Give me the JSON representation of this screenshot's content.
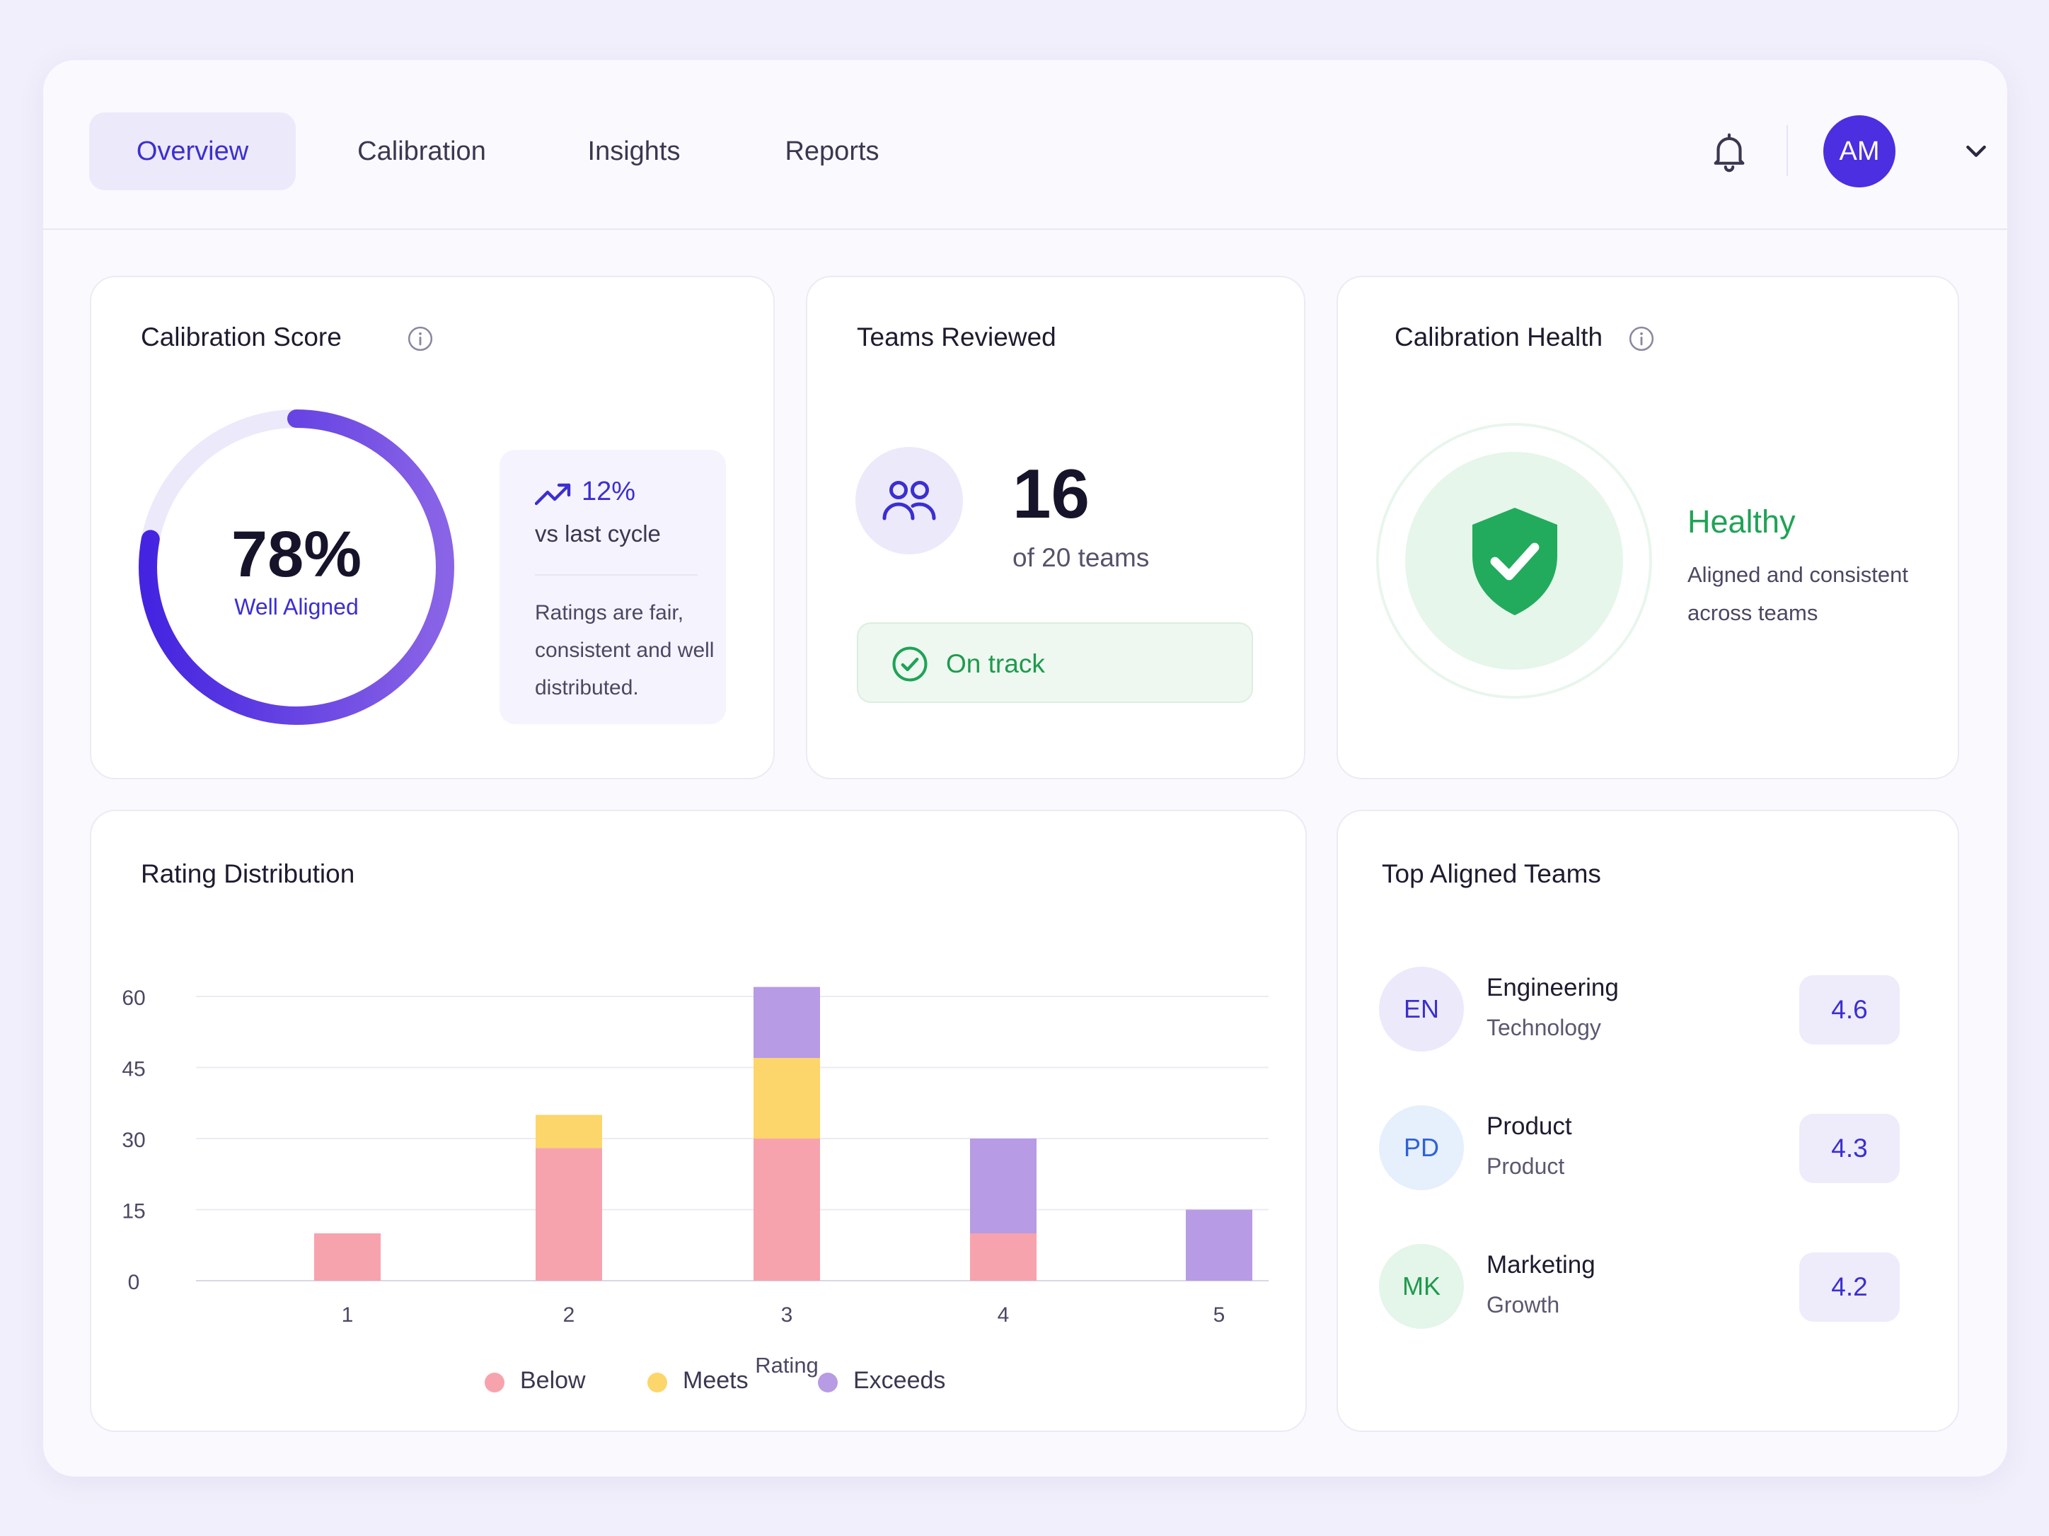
{
  "nav": {
    "tabs": [
      {
        "label": "Overview",
        "active": true
      },
      {
        "label": "Calibration",
        "active": false
      },
      {
        "label": "Insights",
        "active": false
      },
      {
        "label": "Reports",
        "active": false
      }
    ],
    "user_initials": "AM",
    "icons": {
      "notifications": "bell-icon",
      "menu": "chevron-down-icon"
    }
  },
  "calibration_score": {
    "title": "Calibration Score",
    "value": "78%",
    "value_fraction": 0.78,
    "status": "Well Aligned",
    "trend": {
      "pct": "12%",
      "label": "vs last cycle",
      "note": "Ratings are fair, consistent and well distributed."
    }
  },
  "teams_reviewed": {
    "title": "Teams Reviewed",
    "count": "16",
    "total_label": "of 20 teams",
    "status": "On track"
  },
  "calibration_health": {
    "title": "Calibration Health",
    "status": "Healthy",
    "description": "Aligned and consistent across teams"
  },
  "rating_distribution": {
    "title": "Rating Distribution",
    "xlabel": "Rating",
    "legend": [
      {
        "label": "Below",
        "color": "#f7a3ad"
      },
      {
        "label": "Meets",
        "color": "#fcd66b"
      },
      {
        "label": "Exceeds",
        "color": "#b79be4"
      }
    ]
  },
  "chart_data": {
    "type": "bar",
    "stacked": true,
    "categories": [
      "1",
      "2",
      "3",
      "4",
      "5"
    ],
    "series": [
      {
        "name": "Below",
        "color": "#f7a3ad",
        "values": [
          10,
          28,
          30,
          10,
          0
        ]
      },
      {
        "name": "Meets",
        "color": "#fcd66b",
        "values": [
          0,
          7,
          17,
          0,
          0
        ]
      },
      {
        "name": "Exceeds",
        "color": "#b79be4",
        "values": [
          0,
          0,
          15,
          20,
          15
        ]
      }
    ],
    "yticks": [
      "0",
      "15",
      "30",
      "45",
      "60"
    ],
    "ylim": [
      0,
      60
    ],
    "xlabel": "Rating",
    "ylabel": "",
    "grid": true,
    "legend_position": "bottom"
  },
  "top_teams": {
    "title": "Top Aligned Teams",
    "items": [
      {
        "initials": "EN",
        "name": "Engineering",
        "dept": "Technology",
        "score": "4.6",
        "bg": "#ece9fb",
        "fg": "#3b2fd0"
      },
      {
        "initials": "PD",
        "name": "Product",
        "dept": "Product",
        "score": "4.3",
        "bg": "#e6effc",
        "fg": "#2e62d9"
      },
      {
        "initials": "MK",
        "name": "Marketing",
        "dept": "Growth",
        "score": "4.2",
        "bg": "#e4f5ea",
        "fg": "#1f9a4c"
      }
    ]
  }
}
